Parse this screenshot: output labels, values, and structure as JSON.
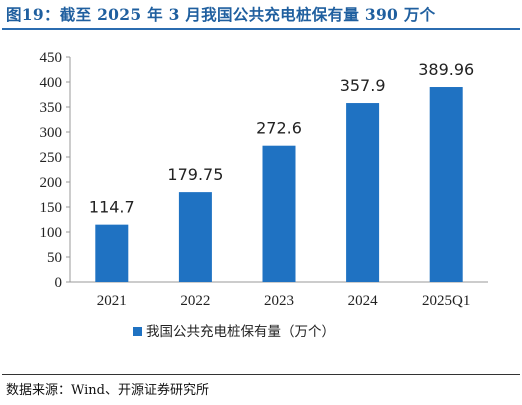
{
  "title": "图19：截至 2025 年 3 月我国公共充电桩保有量 390 万个",
  "source": "数据来源：Wind、开源证券研究所",
  "chart_data": {
    "type": "bar",
    "categories": [
      "2021",
      "2022",
      "2023",
      "2024",
      "2025Q1"
    ],
    "series": [
      {
        "name": "我国公共充电桩保有量（万个）",
        "values": [
          114.7,
          179.75,
          272.6,
          357.9,
          389.96
        ],
        "labels": [
          "114.7",
          "179.75",
          "272.6",
          "357.9",
          "389.96"
        ],
        "color": "#1f72c2"
      }
    ],
    "ylim": [
      0,
      450
    ],
    "yticks": [
      0,
      50,
      100,
      150,
      200,
      250,
      300,
      350,
      400,
      450
    ],
    "grid": false,
    "legend": "bottom-center"
  }
}
